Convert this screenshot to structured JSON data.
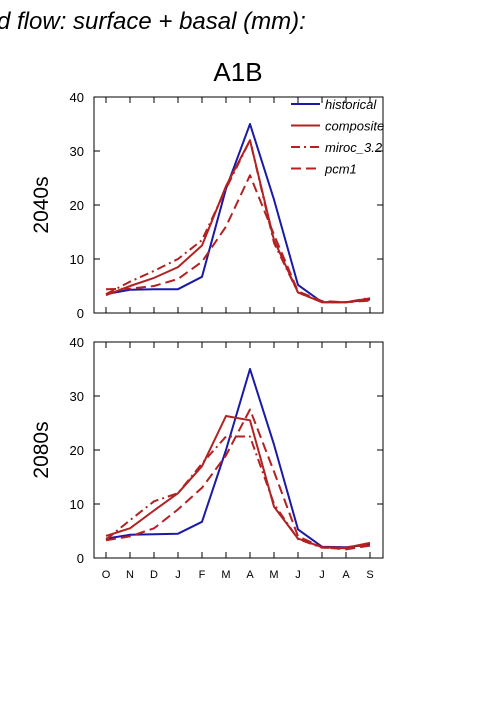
{
  "supertitle": "d flow: surface + basal (mm):",
  "colors": {
    "historical": "#1a1aa6",
    "scenario": "#b22222"
  },
  "chart_data": [
    {
      "type": "line",
      "title": "A1B",
      "ylabel": "2040s",
      "xlabel": "",
      "categories": [
        "O",
        "N",
        "D",
        "J",
        "F",
        "M",
        "A",
        "M",
        "J",
        "J",
        "A",
        "S"
      ],
      "ylim": [
        0,
        40
      ],
      "yticks": [
        0,
        10,
        20,
        30,
        40
      ],
      "legend_position": "top-right",
      "series": [
        {
          "name": "historical",
          "style": "solid",
          "color": "#1a1aa6",
          "values": [
            3.5,
            4.3,
            4.4,
            4.4,
            6.7,
            23.0,
            35.0,
            21.0,
            5.2,
            2.0,
            2.0,
            2.5
          ]
        },
        {
          "name": "composite",
          "style": "solid",
          "color": "#b22222",
          "values": [
            3.3,
            5.0,
            6.5,
            8.5,
            12.5,
            23.5,
            32.0,
            13.5,
            3.8,
            2.0,
            2.0,
            2.7
          ]
        },
        {
          "name": "miroc_3.2",
          "style": "dashdot",
          "color": "#b22222",
          "values": [
            3.5,
            5.8,
            7.8,
            10.0,
            13.5,
            23.0,
            32.0,
            13.0,
            3.8,
            2.0,
            2.0,
            2.8
          ]
        },
        {
          "name": "pcm1",
          "style": "dash",
          "color": "#b22222",
          "values": [
            4.4,
            4.5,
            5.0,
            6.3,
            9.5,
            16.0,
            25.5,
            14.5,
            4.0,
            2.2,
            2.0,
            2.3
          ]
        }
      ]
    },
    {
      "type": "line",
      "title": "",
      "ylabel": "2080s",
      "xlabel": "",
      "categories": [
        "O",
        "N",
        "D",
        "J",
        "F",
        "M",
        "A",
        "M",
        "J",
        "J",
        "A",
        "S"
      ],
      "ylim": [
        0,
        40
      ],
      "yticks": [
        0,
        10,
        20,
        30,
        40
      ],
      "series": [
        {
          "name": "historical",
          "style": "solid",
          "color": "#1a1aa6",
          "values": [
            3.6,
            4.3,
            4.4,
            4.5,
            6.7,
            20.0,
            35.0,
            21.0,
            5.3,
            2.1,
            2.0,
            2.5
          ]
        },
        {
          "name": "composite",
          "style": "solid",
          "color": "#b22222",
          "values": [
            4.1,
            5.5,
            8.8,
            12.0,
            17.0,
            26.3,
            25.5,
            9.5,
            3.6,
            2.0,
            1.9,
            2.8
          ]
        },
        {
          "name": "miroc_3.2",
          "style": "dashdot",
          "color": "#b22222",
          "values": [
            3.4,
            7.0,
            10.5,
            12.0,
            17.5,
            22.5,
            22.5,
            10.0,
            3.5,
            1.9,
            1.8,
            2.6
          ]
        },
        {
          "name": "pcm1",
          "style": "dash",
          "color": "#b22222",
          "values": [
            3.3,
            4.0,
            5.5,
            9.0,
            13.0,
            19.0,
            27.5,
            16.0,
            4.0,
            2.0,
            1.6,
            2.3
          ]
        }
      ]
    }
  ]
}
